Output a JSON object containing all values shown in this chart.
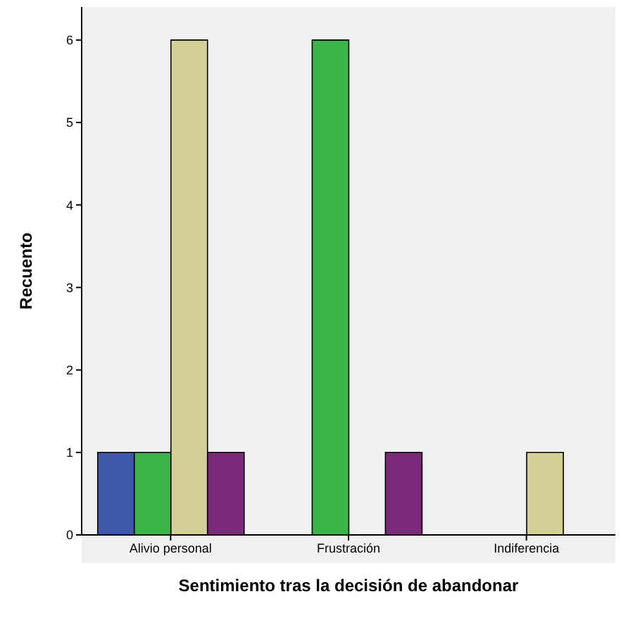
{
  "chart_data": {
    "type": "bar",
    "xlabel": "Sentimiento tras la decisión de abandonar",
    "ylabel": "Recuento",
    "categories": [
      "Alivio personal",
      "Frustración",
      "Indiferencia"
    ],
    "series": [
      {
        "color": "#3e58ac",
        "values": [
          1,
          0,
          0
        ]
      },
      {
        "color": "#3cb44a",
        "values": [
          1,
          6,
          0
        ]
      },
      {
        "color": "#d4cf95",
        "values": [
          6,
          0,
          1
        ]
      },
      {
        "color": "#7b2a7a",
        "values": [
          1,
          1,
          0
        ]
      }
    ],
    "ylim": [
      0,
      6.4
    ],
    "yticks": [
      0,
      1,
      2,
      3,
      4,
      5,
      6
    ],
    "grid": false,
    "legend": false
  }
}
